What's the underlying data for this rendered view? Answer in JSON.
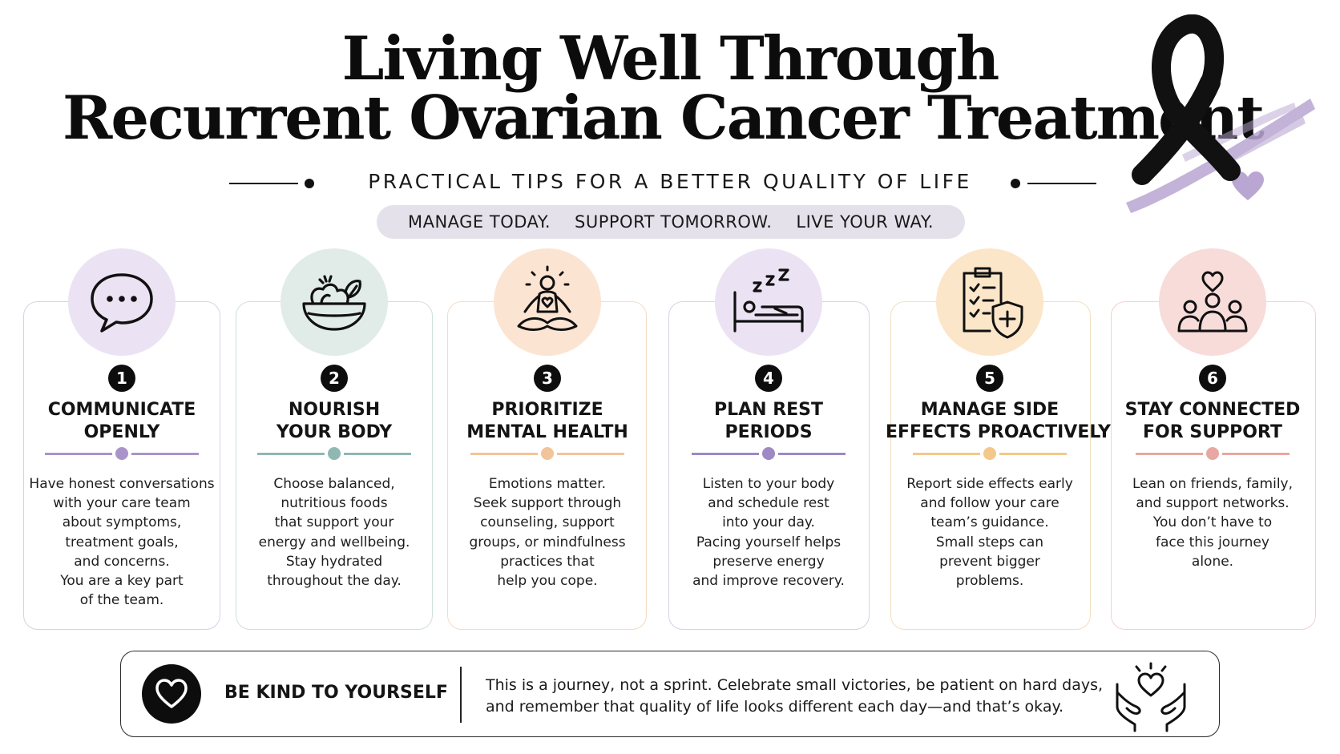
{
  "header": {
    "title_line1": "Living Well Through",
    "title_line2": "Recurrent Ovarian Cancer Treatment",
    "subtitle": "PRACTICAL TIPS FOR A BETTER QUALITY OF LIFE",
    "tagline": [
      "MANAGE TODAY.",
      "SUPPORT TOMORROW.",
      "LIVE YOUR WAY."
    ],
    "ribbon_icon": "awareness-ribbon-icon",
    "ribbon_color": "#111111",
    "brush_color": "#b9a6d2"
  },
  "cards": [
    {
      "number": "1",
      "icon": "speech-bubble-icon",
      "title": [
        "COMMUNICATE",
        "OPENLY"
      ],
      "body": [
        "Have honest conversations",
        "with your care team",
        "about symptoms,",
        "treatment goals,",
        "and concerns.",
        "You are a key part",
        "of the team."
      ],
      "accent": "#a994c9",
      "circle_bg": "#ebe3f3",
      "border": "#d9d0e6"
    },
    {
      "number": "2",
      "icon": "salad-bowl-icon",
      "title": [
        "NOURISH",
        "YOUR BODY"
      ],
      "body": [
        "Choose balanced,",
        "nutritious foods",
        "that support your",
        "energy and wellbeing.",
        "Stay hydrated",
        "throughout the day."
      ],
      "accent": "#8fb8b2",
      "circle_bg": "#e1ece9",
      "border": "#cfe0dc"
    },
    {
      "number": "3",
      "icon": "meditation-icon",
      "title": [
        "PRIORITIZE",
        "MENTAL HEALTH"
      ],
      "body": [
        "Emotions matter.",
        "Seek support through",
        "counseling, support",
        "groups, or mindfulness",
        "practices that",
        "help you cope."
      ],
      "accent": "#f2c49a",
      "circle_bg": "#fbe5d2",
      "border": "#f3dcc6"
    },
    {
      "number": "4",
      "icon": "sleeping-bed-icon",
      "title": [
        "PLAN REST",
        "PERIODS"
      ],
      "body": [
        "Listen to your body",
        "and schedule rest",
        "into your day.",
        "Pacing yourself helps",
        "preserve energy",
        "and improve recovery."
      ],
      "accent": "#9e89c4",
      "circle_bg": "#ebe3f3",
      "border": "#d9d0e6"
    },
    {
      "number": "5",
      "icon": "clipboard-shield-icon",
      "title": [
        "MANAGE SIDE",
        "EFFECTS PROACTIVELY"
      ],
      "body": [
        "Report side effects early",
        "and follow your care",
        "team’s guidance.",
        "Small steps can",
        "prevent bigger",
        "problems."
      ],
      "accent": "#f2c98a",
      "circle_bg": "#fce6c9",
      "border": "#f3dfc0"
    },
    {
      "number": "6",
      "icon": "group-heart-icon",
      "title": [
        "STAY CONNECTED",
        "FOR SUPPORT"
      ],
      "body": [
        "Lean on friends, family,",
        "and support networks.",
        "You don’t have to",
        "face this journey",
        "alone."
      ],
      "accent": "#e8a7a2",
      "circle_bg": "#f7dcda",
      "border": "#f0d2d0"
    }
  ],
  "footer": {
    "heading": "BE KIND TO YOURSELF",
    "text": [
      "This is a journey, not a sprint. Celebrate small victories, be patient on hard days,",
      "and remember that quality of life looks different each day—and that’s okay."
    ],
    "left_icon": "heart-icon",
    "right_icon": "hands-heart-icon"
  }
}
